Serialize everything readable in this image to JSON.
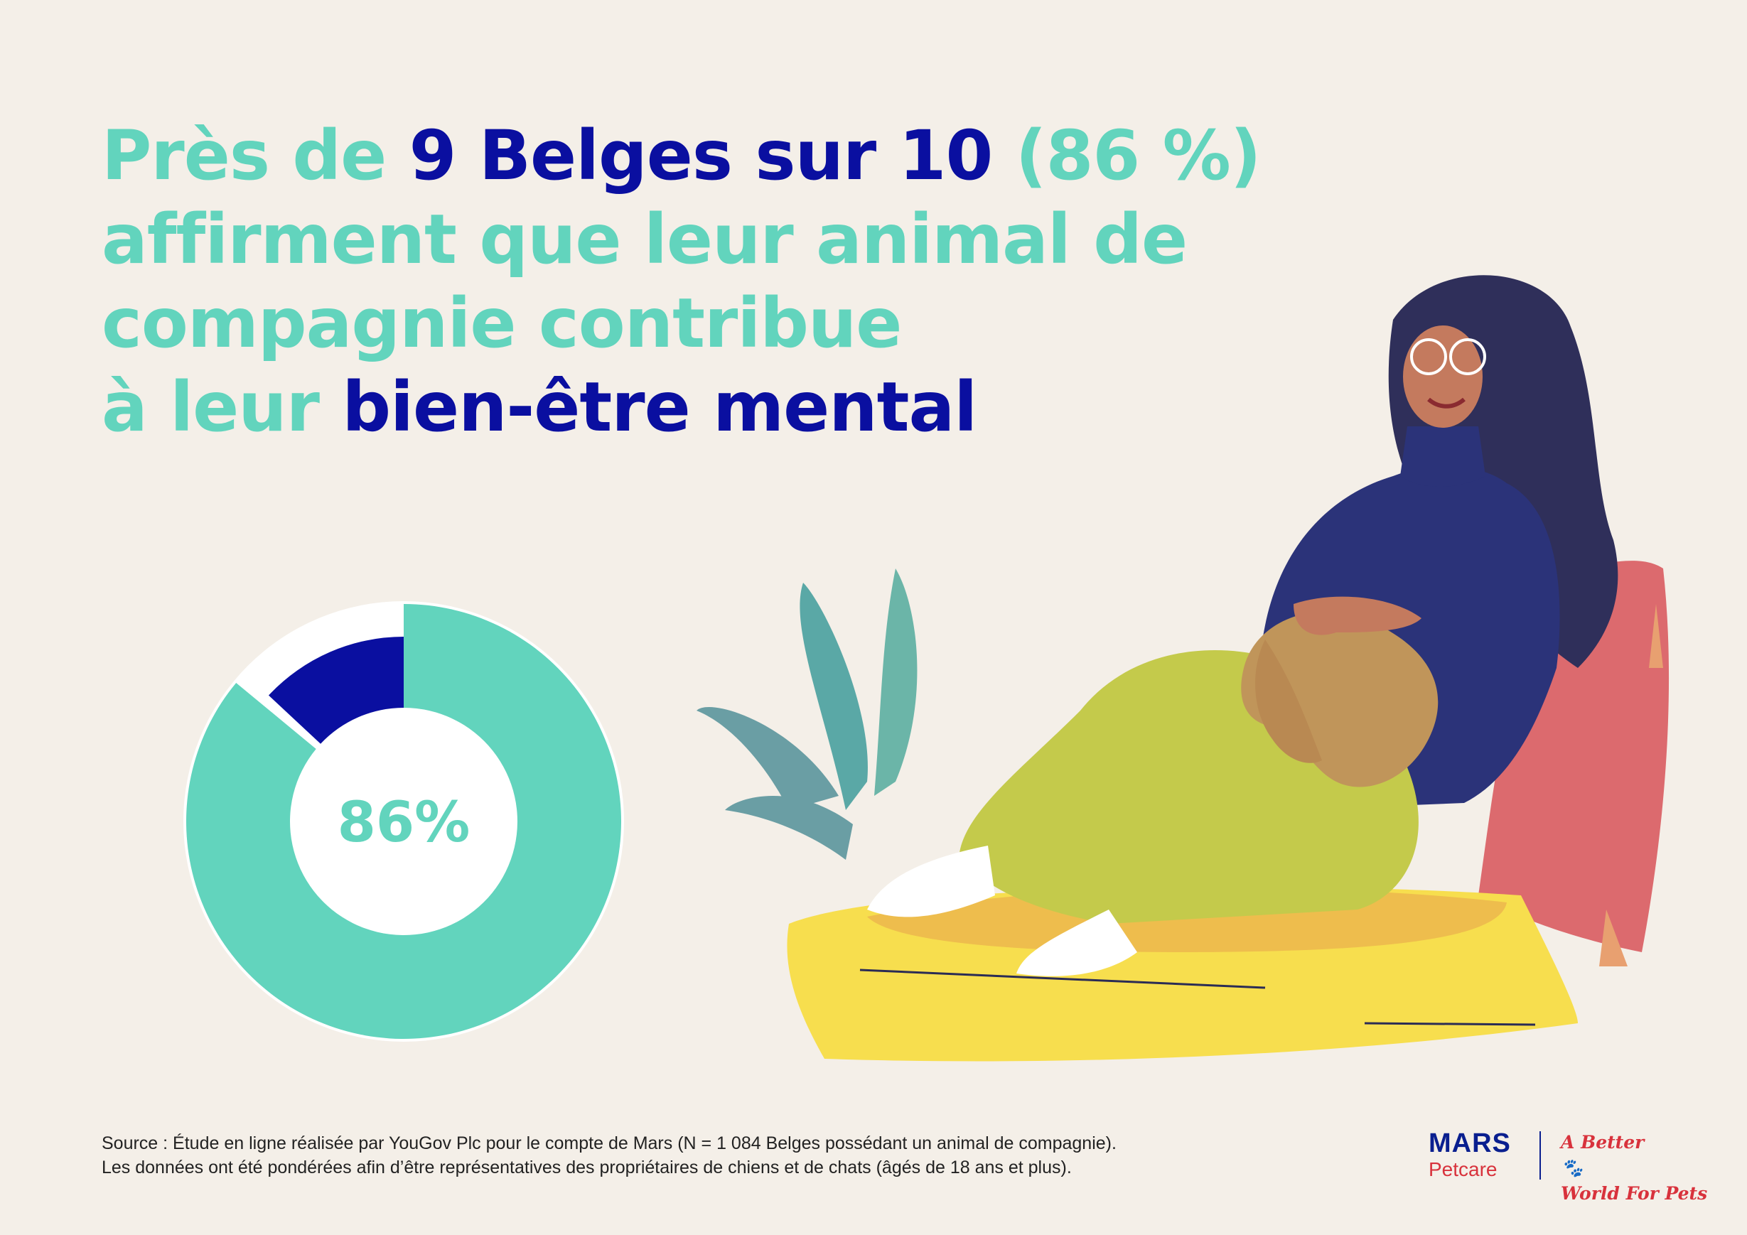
{
  "headline": {
    "l1_a": "Près de ",
    "l1_b": "9 Belges sur 10",
    "l1_c": " (86 %)",
    "l2": "affirment que leur animal de",
    "l3": "compagnie contribue",
    "l4_a": "à leur ",
    "l4_b": "bien-être mental"
  },
  "chart_data": {
    "type": "pie",
    "slices": [
      {
        "label": "",
        "value": 86,
        "color": "#62d4bd"
      },
      {
        "label": "",
        "value": 14,
        "color": "#0a0fa0"
      }
    ],
    "center_label": "86%"
  },
  "source": {
    "line1": "Source : Étude en ligne réalisée par YouGov Plc pour le compte de Mars (N = 1 084 Belges possédant un animal de compagnie).",
    "line2": "Les données ont été pondérées afin d’être représentatives des propriétaires de chiens et de chats (âgés de 18 ans et plus)."
  },
  "brand": {
    "name": "MARS",
    "sub": "Petcare",
    "tagline1": "A Better",
    "tagline2": "World For Pets"
  },
  "colors": {
    "teal": "#62d4bd",
    "navy": "#0a0fa0",
    "background": "#f4efe8"
  },
  "icons": {
    "illustration": "woman-with-dog-illustration",
    "paw": "paw-icon"
  }
}
